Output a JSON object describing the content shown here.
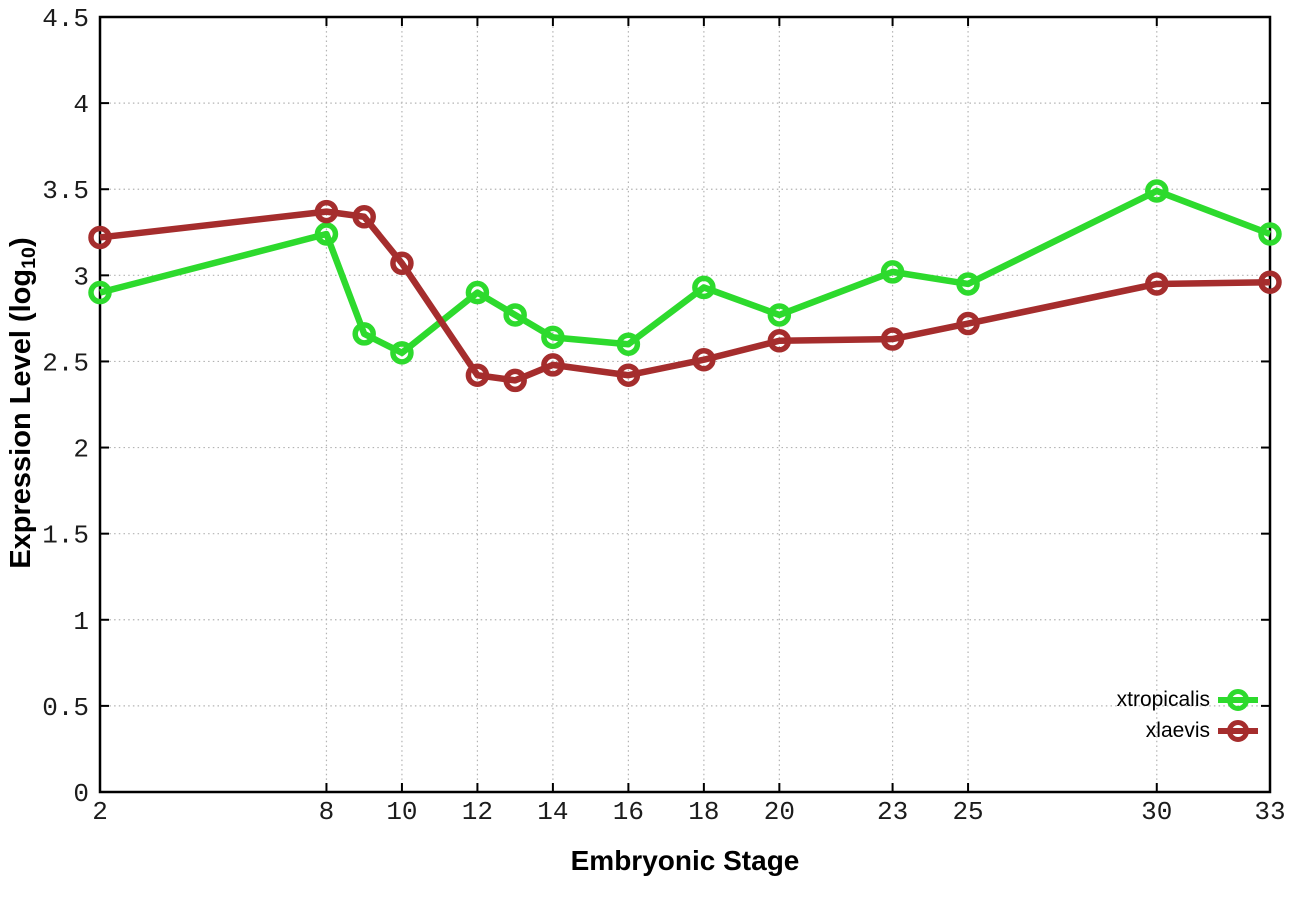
{
  "figure": {
    "background_color": "#ffffff",
    "text_color": "#000000",
    "grid_color": "#b3b3b3"
  },
  "chart_data": {
    "type": "line",
    "title": "",
    "xlabel": "Embryonic Stage",
    "ylabel": "Expression Level (log10)",
    "ylabel_parts": {
      "pre": "Expression Level (log",
      "sub": "10",
      "post": ")"
    },
    "xlim": [
      2,
      33
    ],
    "ylim": [
      0,
      4.5
    ],
    "x": [
      2,
      8,
      9,
      10,
      12,
      13,
      14,
      16,
      18,
      20,
      23,
      25,
      30,
      33
    ],
    "x_tick_labels": [
      2,
      8,
      10,
      12,
      14,
      16,
      18,
      20,
      23,
      25,
      30,
      33
    ],
    "y_tick_labels": [
      0,
      0.5,
      1,
      1.5,
      2,
      2.5,
      3,
      3.5,
      4,
      4.5
    ],
    "grid": true,
    "grid_style": "dotted",
    "legend_position": "bottom-right-inside",
    "marker": "open-circle",
    "series": [
      {
        "name": "xtropicalis",
        "color": "#2dda2d",
        "values": [
          2.9,
          3.24,
          2.66,
          2.55,
          2.9,
          2.77,
          2.64,
          2.6,
          2.93,
          2.77,
          3.02,
          2.95,
          3.49,
          3.24
        ]
      },
      {
        "name": "xlaevis",
        "color": "#a52d2d",
        "values": [
          3.22,
          3.37,
          3.34,
          3.07,
          2.42,
          2.39,
          2.48,
          2.42,
          2.51,
          2.62,
          2.63,
          2.72,
          2.95,
          2.96
        ]
      }
    ]
  }
}
